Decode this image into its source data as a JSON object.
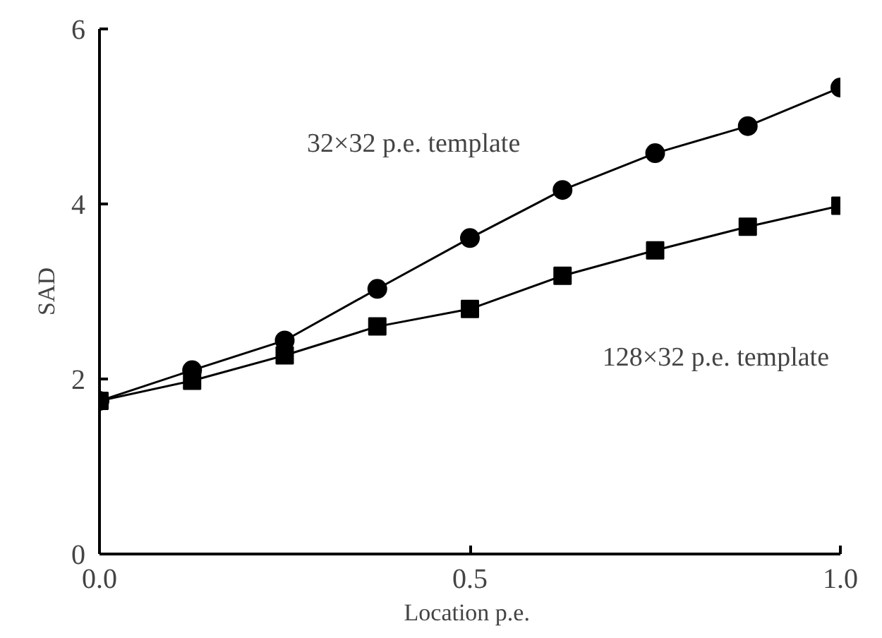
{
  "chart_data": {
    "type": "line",
    "xlabel": "Location  p.e.",
    "ylabel": "SAD",
    "x": [
      0,
      0.125,
      0.25,
      0.375,
      0.5,
      0.625,
      0.75,
      0.875,
      1.0
    ],
    "series": [
      {
        "name": "32×32 p.e. template",
        "color": "#000000",
        "marker": "circle",
        "values": [
          1.75,
          2.1,
          2.44,
          3.03,
          3.61,
          4.16,
          4.58,
          4.89,
          5.33
        ]
      },
      {
        "name": "128×32 p.e. template",
        "color": "#000000",
        "marker": "square",
        "values": [
          1.75,
          1.98,
          2.27,
          2.6,
          2.8,
          3.18,
          3.47,
          3.74,
          3.98
        ]
      }
    ],
    "xlim": [
      0,
      1.0
    ],
    "ylim": [
      0,
      6
    ],
    "xticks": [
      {
        "value": 0,
        "label": "0.0"
      },
      0.5,
      {
        "value": 1.0,
        "label": "1.0"
      }
    ],
    "yticks": [
      0,
      2,
      4,
      6
    ],
    "grid": false,
    "line_style": "solid"
  }
}
